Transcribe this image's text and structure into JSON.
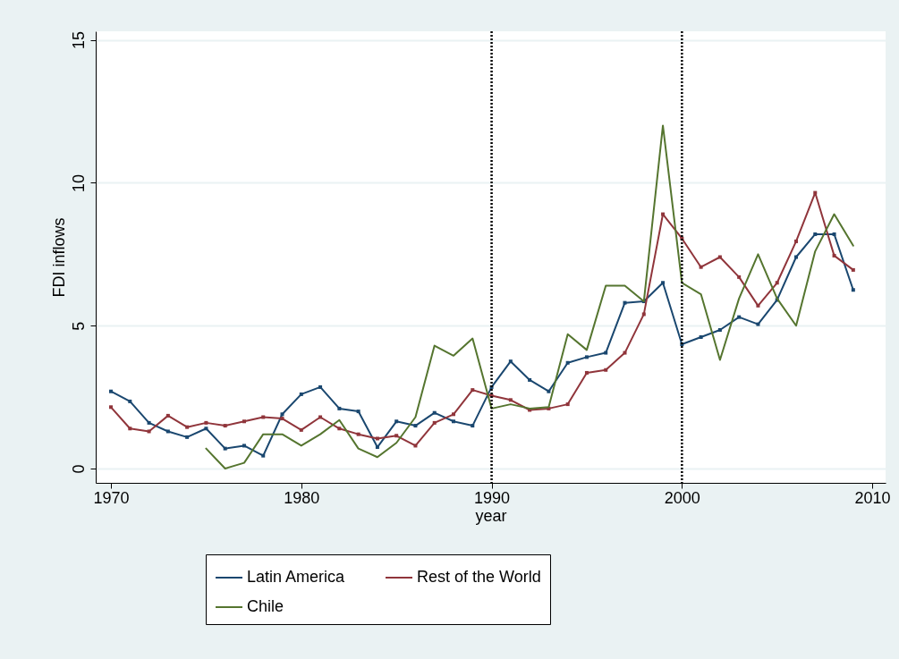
{
  "chart_data": {
    "type": "line",
    "xlabel": "year",
    "ylabel": "FDI inflows",
    "x": [
      1970,
      1971,
      1972,
      1973,
      1974,
      1975,
      1976,
      1977,
      1978,
      1979,
      1980,
      1981,
      1982,
      1983,
      1984,
      1985,
      1986,
      1987,
      1988,
      1989,
      1990,
      1991,
      1992,
      1993,
      1994,
      1995,
      1996,
      1997,
      1998,
      1999,
      2000,
      2001,
      2002,
      2003,
      2004,
      2005,
      2006,
      2007,
      2008,
      2009
    ],
    "series": [
      {
        "name": "Latin America",
        "color": "#1a476f",
        "marker": "square",
        "values": [
          2.7,
          2.35,
          1.6,
          1.3,
          1.1,
          1.4,
          0.7,
          0.8,
          0.45,
          1.9,
          2.6,
          2.85,
          2.1,
          2.0,
          0.75,
          1.65,
          1.5,
          1.95,
          1.65,
          1.5,
          2.85,
          3.75,
          3.1,
          2.7,
          3.7,
          3.9,
          4.05,
          5.8,
          5.85,
          6.5,
          4.35,
          4.6,
          4.85,
          5.3,
          5.05,
          5.9,
          7.4,
          8.2,
          8.2,
          6.25
        ]
      },
      {
        "name": "Rest of the World",
        "color": "#90353b",
        "marker": "square",
        "values": [
          2.15,
          1.4,
          1.3,
          1.85,
          1.45,
          1.6,
          1.5,
          1.65,
          1.8,
          1.75,
          1.35,
          1.8,
          1.4,
          1.2,
          1.05,
          1.15,
          0.8,
          1.6,
          1.9,
          2.75,
          2.55,
          2.4,
          2.05,
          2.1,
          2.25,
          3.35,
          3.45,
          4.05,
          5.4,
          8.9,
          8.05,
          7.05,
          7.4,
          6.7,
          5.7,
          6.5,
          7.95,
          9.65,
          7.45,
          6.95
        ]
      },
      {
        "name": "Chile",
        "color": "#55752f",
        "marker": "none",
        "values": [
          null,
          null,
          null,
          null,
          null,
          0.7,
          0.0,
          0.2,
          1.2,
          1.2,
          0.8,
          1.2,
          1.7,
          0.7,
          0.4,
          0.9,
          1.8,
          4.3,
          3.95,
          4.55,
          2.1,
          2.25,
          2.1,
          2.15,
          4.7,
          4.15,
          6.4,
          6.4,
          5.85,
          12.0,
          6.5,
          6.1,
          3.8,
          5.95,
          7.5,
          5.95,
          5.0,
          7.6,
          8.9,
          7.8
        ]
      }
    ],
    "xlim": [
      1969.2,
      2010.7
    ],
    "xticks": [
      1970,
      1980,
      1990,
      2000,
      2010
    ],
    "ylim": [
      -0.5,
      15.3
    ],
    "yticks": [
      0,
      5,
      10,
      15
    ],
    "grid": "y",
    "legend": "bottom",
    "line_style": "solid",
    "ref_lines": [
      {
        "axis": "x",
        "value": 1990,
        "color": "#000000",
        "line_style": "dotted"
      },
      {
        "axis": "x",
        "value": 2000,
        "color": "#000000",
        "line_style": "dotted"
      }
    ]
  }
}
